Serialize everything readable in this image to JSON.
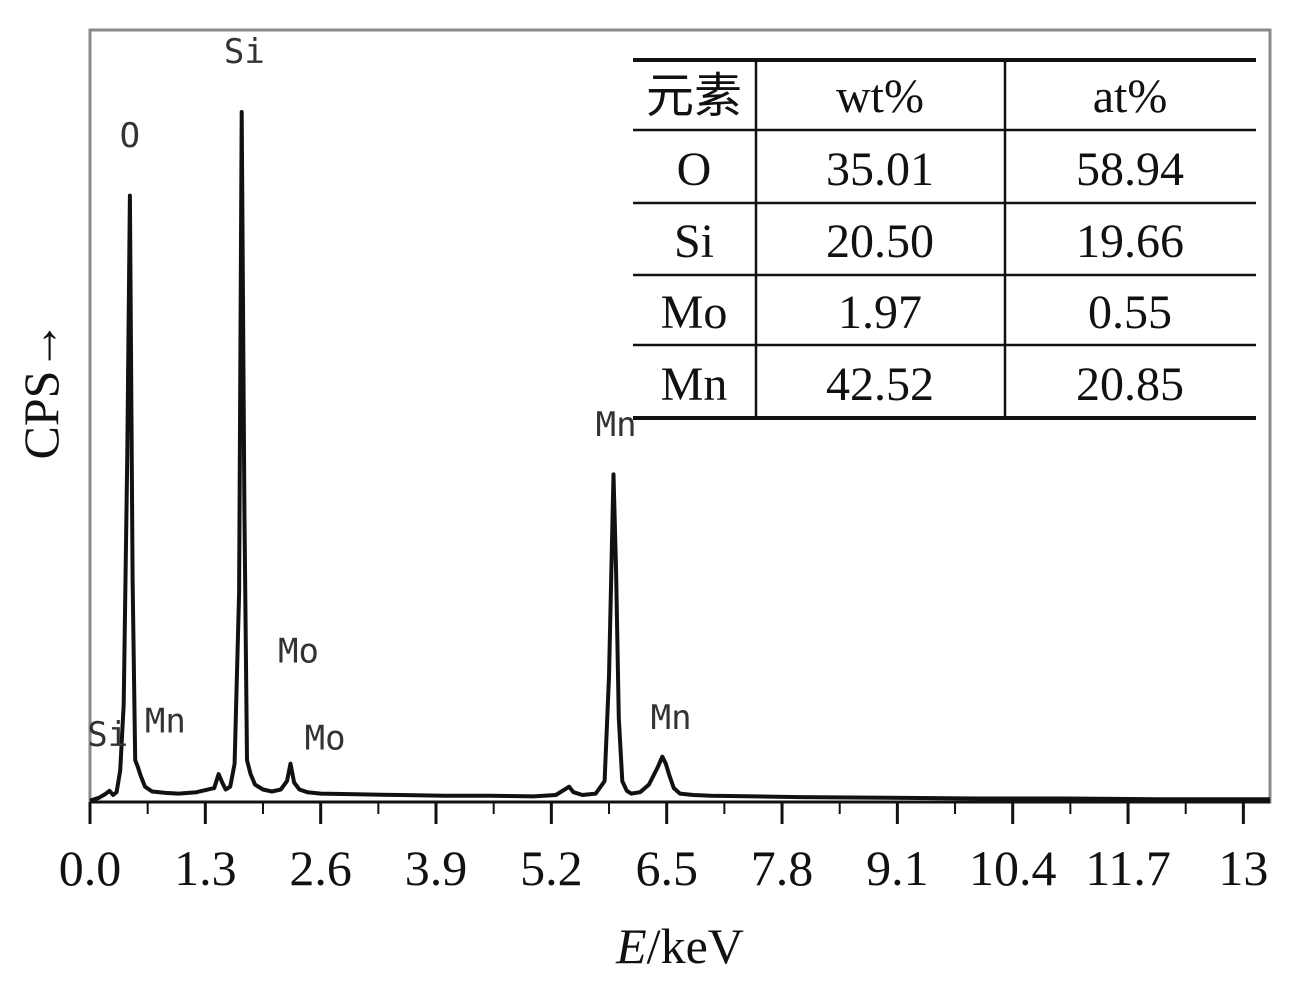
{
  "chart_data": {
    "type": "line",
    "xlabel_italic": "E",
    "xlabel_rest": "/keV",
    "ylabel": "CPS→",
    "xlim": [
      0,
      13.3
    ],
    "ylim": [
      0,
      1000
    ],
    "x_ticks": [
      0.0,
      1.3,
      2.6,
      3.9,
      5.2,
      6.5,
      7.8,
      9.1,
      10.4,
      11.7,
      13
    ],
    "x_tick_labels": [
      "0.0",
      "1.3",
      "2.6",
      "3.9",
      "5.2",
      "6.5",
      "7.8",
      "9.1",
      "10.4",
      "11.7",
      "13"
    ],
    "series": [
      {
        "color": "#111111",
        "x": [
          0.0,
          0.1,
          0.18,
          0.22,
          0.26,
          0.3,
          0.34,
          0.38,
          0.42,
          0.45,
          0.48,
          0.51,
          0.54,
          0.57,
          0.62,
          0.7,
          0.85,
          1.0,
          1.2,
          1.4,
          1.45,
          1.49,
          1.53,
          1.58,
          1.63,
          1.68,
          1.71,
          1.74,
          1.77,
          1.81,
          1.86,
          1.95,
          2.05,
          2.15,
          2.22,
          2.26,
          2.3,
          2.36,
          2.45,
          2.6,
          3.0,
          3.5,
          4.0,
          4.5,
          5.0,
          5.25,
          5.35,
          5.4,
          5.45,
          5.55,
          5.7,
          5.8,
          5.85,
          5.9,
          5.93,
          5.96,
          6.0,
          6.05,
          6.1,
          6.2,
          6.3,
          6.4,
          6.45,
          6.49,
          6.53,
          6.58,
          6.65,
          6.8,
          7.0,
          7.5,
          8.0,
          9.0,
          10.0,
          11.0,
          12.0,
          13.0,
          13.3
        ],
        "y": [
          2,
          6,
          12,
          16,
          10,
          14,
          45,
          140,
          500,
          870,
          320,
          60,
          50,
          38,
          22,
          15,
          13,
          12,
          14,
          20,
          40,
          28,
          18,
          22,
          55,
          300,
          990,
          420,
          60,
          40,
          25,
          18,
          15,
          18,
          30,
          55,
          28,
          18,
          14,
          12,
          11,
          10,
          9,
          9,
          8,
          10,
          18,
          22,
          14,
          10,
          12,
          30,
          180,
          470,
          330,
          120,
          30,
          16,
          12,
          14,
          25,
          50,
          65,
          55,
          38,
          20,
          12,
          10,
          9,
          8,
          7,
          6,
          5,
          5,
          4,
          4,
          4
        ]
      }
    ],
    "peak_labels": [
      {
        "text": "Si",
        "x": 1.74,
        "y": 1060
      },
      {
        "text": "O",
        "x": 0.45,
        "y": 940
      },
      {
        "text": "Mn",
        "x": 5.93,
        "y": 525
      },
      {
        "text": "Mo",
        "x": 2.35,
        "y": 200
      },
      {
        "text": "Mo",
        "x": 2.65,
        "y": 75
      },
      {
        "text": "Mn",
        "x": 6.55,
        "y": 105
      },
      {
        "text": "Si",
        "x": 0.2,
        "y": 80
      },
      {
        "text": "Mn",
        "x": 0.85,
        "y": 100
      }
    ],
    "table": {
      "header": [
        "元素",
        "wt%",
        "at%"
      ],
      "rows": [
        [
          "O",
          "35.01",
          "58.94"
        ],
        [
          "Si",
          "20.50",
          "19.66"
        ],
        [
          "Mo",
          "1.97",
          "0.55"
        ],
        [
          "Mn",
          "42.52",
          "20.85"
        ]
      ]
    }
  }
}
